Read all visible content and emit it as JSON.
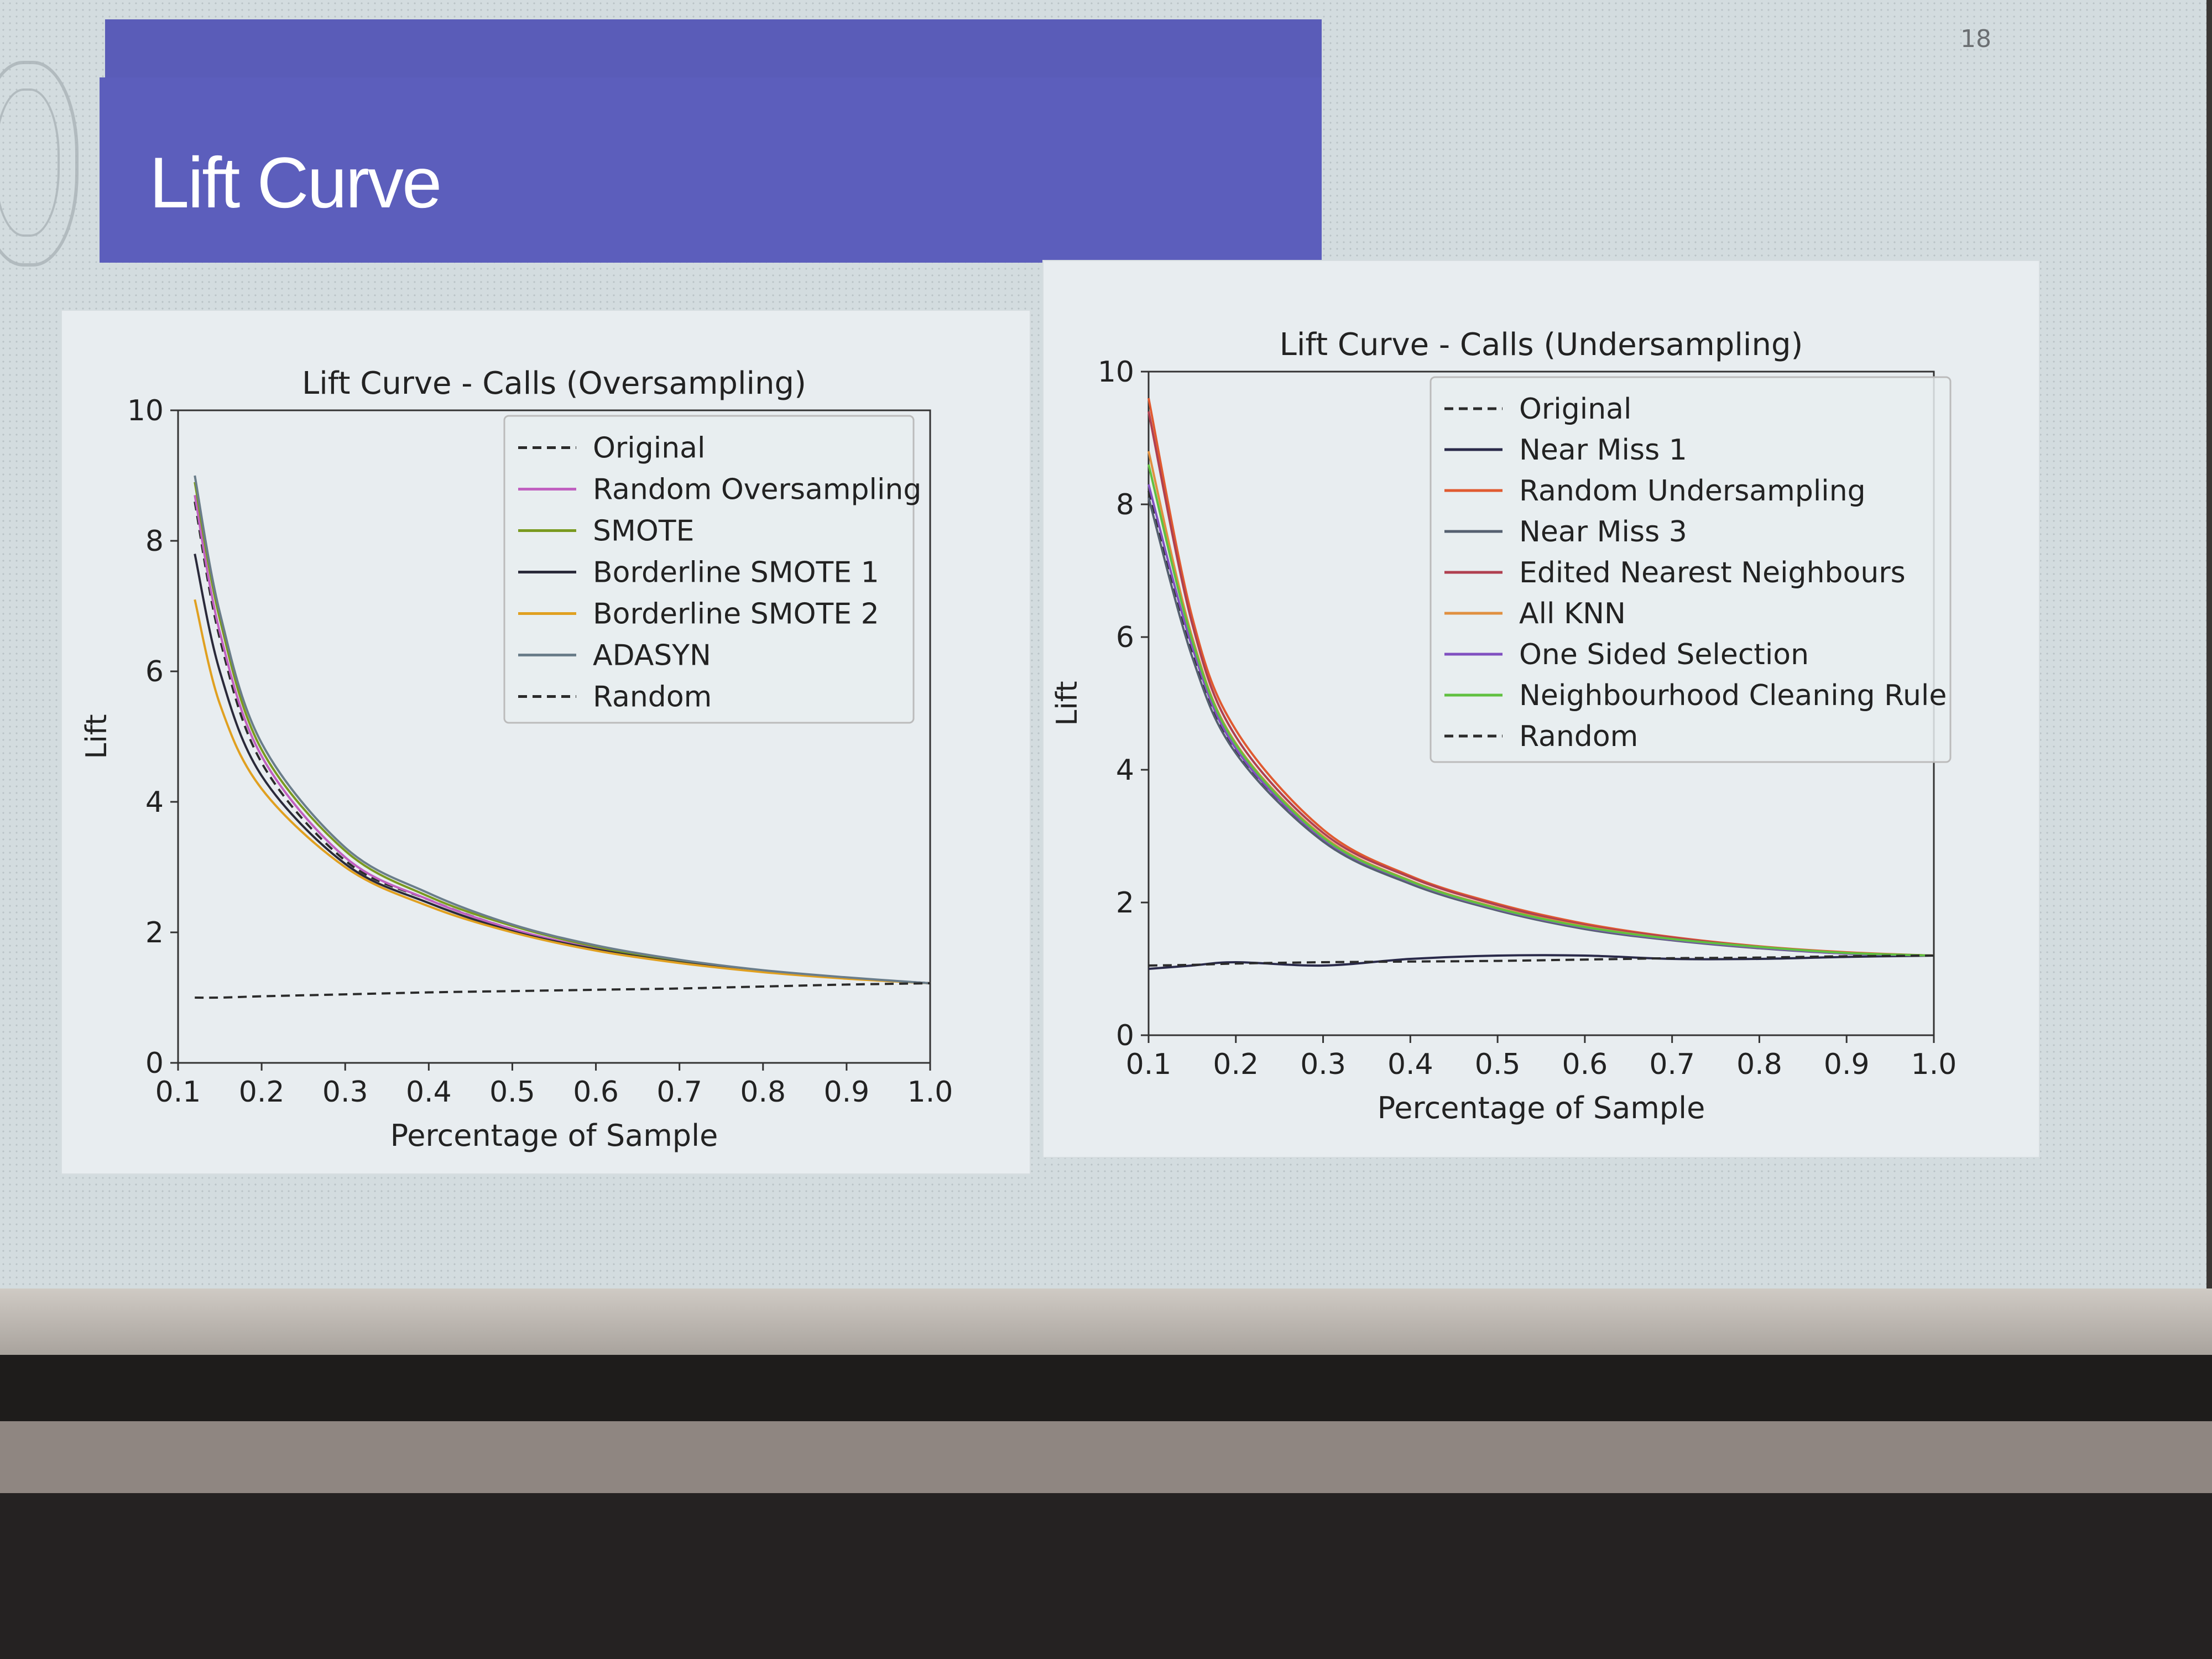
{
  "slide": {
    "title": "Lift Curve",
    "page_number": "18"
  },
  "colors": {
    "title_bar": "#5c5ebc",
    "title_text": "#ffffff",
    "background": "#d3dcdf"
  },
  "chart_data": [
    {
      "type": "line",
      "title": "Lift Curve - Calls (Oversampling)",
      "xlabel": "Percentage of Sample",
      "ylabel": "Lift",
      "xlim": [
        0.1,
        1.0
      ],
      "ylim": [
        0,
        10
      ],
      "xticks": [
        "0.1",
        "0.2",
        "0.3",
        "0.4",
        "0.5",
        "0.6",
        "0.7",
        "0.8",
        "0.9",
        "1.0"
      ],
      "yticks": [
        "0",
        "2",
        "4",
        "6",
        "8",
        "10"
      ],
      "legend_position": "top-right",
      "x": [
        0.12,
        0.15,
        0.2,
        0.3,
        0.4,
        0.5,
        0.6,
        0.7,
        0.8,
        0.9,
        1.0
      ],
      "series": [
        {
          "name": "Original",
          "color": "#2b2b2b",
          "dashed": true,
          "values": [
            8.6,
            6.5,
            4.6,
            3.1,
            2.5,
            2.05,
            1.75,
            1.55,
            1.4,
            1.3,
            1.22
          ]
        },
        {
          "name": "Random Oversampling",
          "color": "#c060c0",
          "dashed": false,
          "values": [
            8.7,
            6.6,
            4.7,
            3.15,
            2.5,
            2.05,
            1.75,
            1.55,
            1.4,
            1.3,
            1.22
          ]
        },
        {
          "name": "SMOTE",
          "color": "#7a9a20",
          "dashed": false,
          "values": [
            8.9,
            6.8,
            4.8,
            3.25,
            2.55,
            2.1,
            1.78,
            1.56,
            1.41,
            1.3,
            1.22
          ]
        },
        {
          "name": "Borderline SMOTE 1",
          "color": "#2a2a3a",
          "dashed": false,
          "values": [
            7.8,
            6.0,
            4.4,
            3.05,
            2.45,
            2.02,
            1.74,
            1.54,
            1.4,
            1.3,
            1.22
          ]
        },
        {
          "name": "Borderline SMOTE 2",
          "color": "#e0a020",
          "dashed": false,
          "values": [
            7.1,
            5.5,
            4.2,
            3.0,
            2.4,
            2.0,
            1.72,
            1.53,
            1.39,
            1.29,
            1.22
          ]
        },
        {
          "name": "ADASYN",
          "color": "#6a7d8a",
          "dashed": false,
          "values": [
            9.0,
            6.9,
            4.9,
            3.3,
            2.6,
            2.12,
            1.8,
            1.58,
            1.42,
            1.31,
            1.22
          ]
        },
        {
          "name": "Random",
          "color": "#2b2b2b",
          "dashed": true,
          "values": [
            1.0,
            1.0,
            1.02,
            1.05,
            1.08,
            1.1,
            1.12,
            1.14,
            1.17,
            1.2,
            1.22
          ]
        }
      ]
    },
    {
      "type": "line",
      "title": "Lift Curve - Calls (Undersampling)",
      "xlabel": "Percentage of Sample",
      "ylabel": "Lift",
      "xlim": [
        0.1,
        1.0
      ],
      "ylim": [
        0,
        10
      ],
      "xticks": [
        "0.1",
        "0.2",
        "0.3",
        "0.4",
        "0.5",
        "0.6",
        "0.7",
        "0.8",
        "0.9",
        "1.0"
      ],
      "yticks": [
        "0",
        "2",
        "4",
        "6",
        "8",
        "10"
      ],
      "legend_position": "top-right",
      "x": [
        0.1,
        0.15,
        0.2,
        0.3,
        0.4,
        0.5,
        0.6,
        0.7,
        0.8,
        0.9,
        1.0
      ],
      "series": [
        {
          "name": "Original",
          "color": "#2b2b2b",
          "dashed": true,
          "values": [
            8.2,
            5.8,
            4.3,
            2.95,
            2.3,
            1.9,
            1.62,
            1.44,
            1.32,
            1.23,
            1.2
          ]
        },
        {
          "name": "Near Miss 1",
          "color": "#2a2a4a",
          "dashed": false,
          "values": [
            1.0,
            1.05,
            1.1,
            1.05,
            1.15,
            1.2,
            1.2,
            1.15,
            1.15,
            1.18,
            1.2
          ]
        },
        {
          "name": "Random Undersampling",
          "color": "#e05a30",
          "dashed": false,
          "values": [
            9.6,
            6.3,
            4.6,
            3.1,
            2.4,
            1.98,
            1.68,
            1.48,
            1.34,
            1.25,
            1.2
          ]
        },
        {
          "name": "Near Miss 3",
          "color": "#556070",
          "dashed": false,
          "values": [
            8.1,
            5.7,
            4.25,
            2.92,
            2.28,
            1.88,
            1.6,
            1.43,
            1.31,
            1.23,
            1.2
          ]
        },
        {
          "name": "Edited Nearest Neighbours",
          "color": "#b04050",
          "dashed": false,
          "values": [
            9.4,
            6.2,
            4.5,
            3.05,
            2.38,
            1.96,
            1.66,
            1.47,
            1.33,
            1.24,
            1.2
          ]
        },
        {
          "name": "All KNN",
          "color": "#e09040",
          "dashed": false,
          "values": [
            8.8,
            6.0,
            4.4,
            3.0,
            2.33,
            1.92,
            1.64,
            1.45,
            1.32,
            1.24,
            1.2
          ]
        },
        {
          "name": "One Sided Selection",
          "color": "#8050c0",
          "dashed": false,
          "values": [
            8.3,
            5.85,
            4.32,
            2.96,
            2.31,
            1.9,
            1.62,
            1.44,
            1.32,
            1.23,
            1.2
          ]
        },
        {
          "name": "Neighbourhood Cleaning Rule",
          "color": "#60c040",
          "dashed": false,
          "values": [
            8.6,
            5.95,
            4.38,
            2.98,
            2.32,
            1.91,
            1.63,
            1.45,
            1.33,
            1.24,
            1.2
          ]
        },
        {
          "name": "Random",
          "color": "#2b2b2b",
          "dashed": true,
          "values": [
            1.05,
            1.06,
            1.08,
            1.1,
            1.11,
            1.12,
            1.14,
            1.16,
            1.17,
            1.19,
            1.2
          ]
        }
      ]
    }
  ]
}
